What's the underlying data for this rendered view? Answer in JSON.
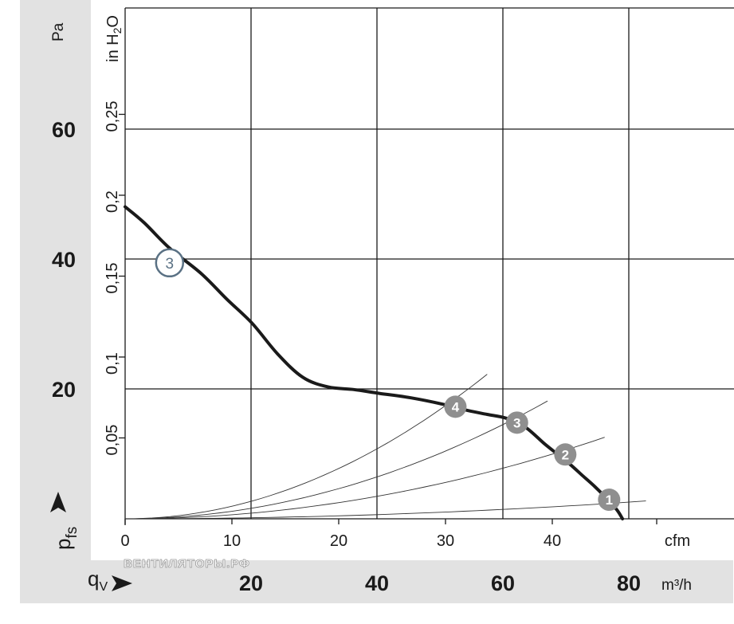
{
  "colors": {
    "panel_bg": "#e2e2e2",
    "grid": "#1a1a1a",
    "curve": "#1a1a1a",
    "system_curve": "#333333",
    "marker_fill": "#8f8f8f",
    "marker_outline": "#5a7184"
  },
  "labels": {
    "pa_unit": "Pa",
    "inh2o_unit": "in H",
    "inh2o_sub": "2",
    "inh2o_o": "O",
    "cfm_unit": "cfm",
    "m3h_unit": "m³/h",
    "pressure_symbol": "p",
    "pressure_sub": "fs",
    "flow_symbol": "q",
    "flow_sub": "V",
    "watermark": "ВЕНТИЛЯТОРЫ.РФ"
  },
  "chart_data": {
    "type": "line",
    "title": "",
    "xlabel": "qV",
    "ylabel": "pfs",
    "x_unit": "m³/h",
    "y_unit": "Pa",
    "xlim": [
      0,
      98
    ],
    "ylim": [
      0,
      70
    ],
    "grid": true,
    "pa_ticks": [
      20,
      40,
      60
    ],
    "m3h_ticks": [
      20,
      40,
      60,
      80
    ],
    "cfm_ticks": [
      0,
      10,
      20,
      30,
      40,
      "cfm"
    ],
    "inh2o_ticks": [
      "0,05",
      "0,1",
      "0,15",
      "0,2",
      "0,25"
    ],
    "series": [
      {
        "x": [
          0,
          3,
          7,
          12,
          16,
          20,
          24,
          28,
          32,
          36,
          40,
          45,
          50,
          54,
          57,
          60,
          63,
          66,
          68,
          70,
          72,
          74,
          76,
          77.5,
          78.3
        ],
        "y": [
          49,
          46.5,
          42.5,
          38.5,
          34.5,
          30.7,
          25.9,
          22.2,
          20.7,
          20.3,
          19.7,
          19,
          18,
          17,
          16.4,
          15.8,
          14.4,
          11.8,
          10.2,
          8.6,
          6.8,
          5,
          3,
          1.3,
          0
        ]
      }
    ],
    "system_curves": [
      {
        "label": "1",
        "x_end": 82,
        "y_end": 2.8
      },
      {
        "label": "2",
        "x_end": 75.5,
        "y_end": 12.8
      },
      {
        "label": "3",
        "x_end": 66.5,
        "y_end": 18.5
      },
      {
        "label": "4",
        "x_end": 57,
        "y_end": 22.7
      }
    ],
    "markers": [
      {
        "label": "3",
        "style": "outline",
        "x": 7,
        "y": 40.2
      },
      {
        "label": "4",
        "style": "filled",
        "x": 52,
        "y": 17.6
      },
      {
        "label": "3",
        "style": "filled",
        "x": 61.7,
        "y": 15.1
      },
      {
        "label": "2",
        "style": "filled",
        "x": 69.3,
        "y": 10.1
      },
      {
        "label": "1",
        "style": "filled",
        "x": 76.2,
        "y": 3.0
      }
    ]
  }
}
